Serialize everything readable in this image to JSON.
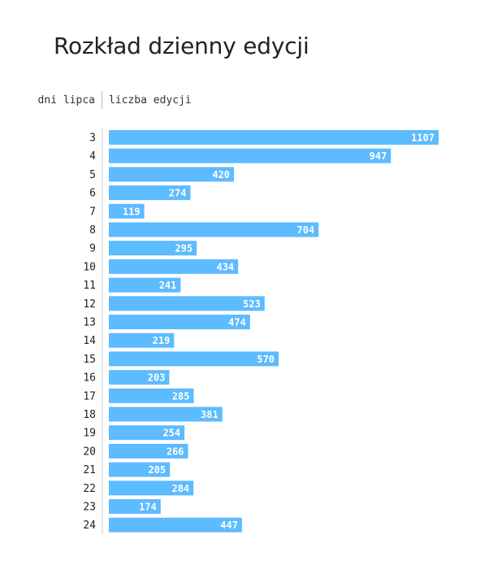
{
  "chart_data": {
    "type": "bar",
    "orientation": "horizontal",
    "title": "Rozkład dzienny edycji",
    "category_header": "dni lipca",
    "value_header": "liczba edycji",
    "categories": [
      "3",
      "4",
      "5",
      "6",
      "7",
      "8",
      "9",
      "10",
      "11",
      "12",
      "13",
      "14",
      "15",
      "16",
      "17",
      "18",
      "19",
      "20",
      "21",
      "22",
      "23",
      "24"
    ],
    "values": [
      1107,
      947,
      420,
      274,
      119,
      704,
      295,
      434,
      241,
      523,
      474,
      219,
      570,
      203,
      285,
      381,
      254,
      266,
      205,
      284,
      174,
      447
    ],
    "color": "#5dbbff",
    "grid": false
  }
}
